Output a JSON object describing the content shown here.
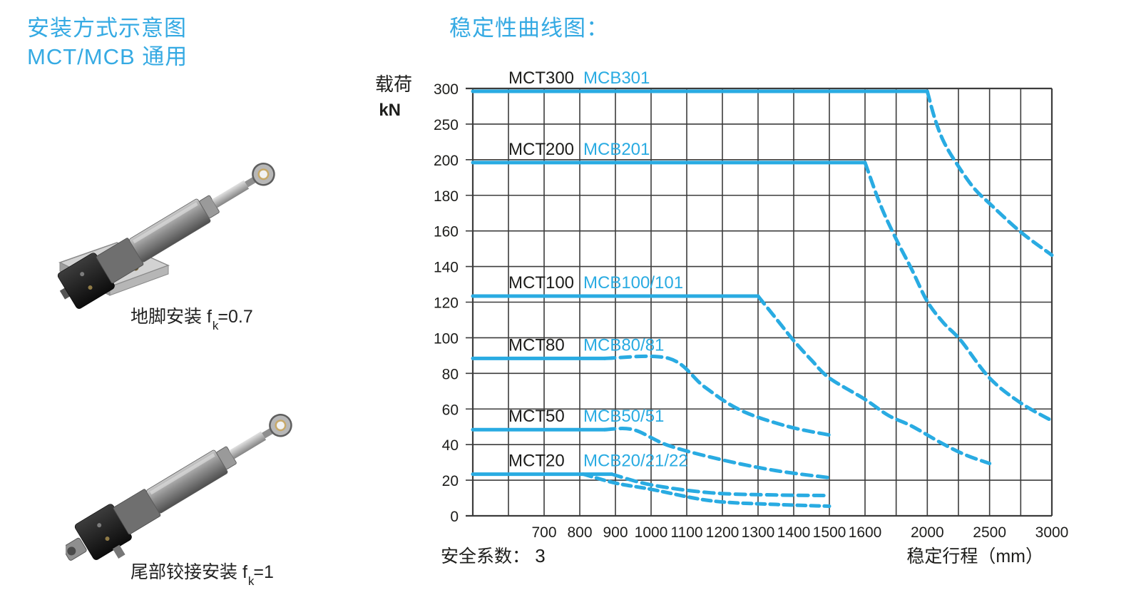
{
  "header": {
    "left_title": "安装方式示意图\nMCT/MCB 通用",
    "chart_title": "稳定性曲线图："
  },
  "mounting_diagrams": {
    "items": [
      {
        "caption": "地脚安装 f",
        "caption_sub": "k",
        "caption_value": "=0.7"
      },
      {
        "caption": "尾部铰接安装 f",
        "caption_sub": "k",
        "caption_value": "=1"
      }
    ]
  },
  "colors": {
    "accent_blue": "#29ABE2",
    "title_blue": "#35AAE3",
    "grid": "#3c3c3c",
    "text_black": "#1d1d1b"
  },
  "chart_data": {
    "type": "line",
    "title": "稳定性曲线图：",
    "y_axis_title_line1": "载荷",
    "y_axis_title_line2": "kN",
    "x_axis_title": "稳定行程（mm）",
    "safety_label": "安全系数：",
    "safety_value": "3",
    "grid": true,
    "y_axis": {
      "ticks": [
        0,
        20,
        40,
        60,
        80,
        100,
        120,
        140,
        160,
        180,
        200,
        250,
        300
      ],
      "note": "non-linear: 20 kN per division up to 200, then 50 kN per division"
    },
    "x_axis": {
      "start_mm": 500,
      "ticks": [
        700,
        800,
        900,
        1000,
        1100,
        1200,
        1300,
        1400,
        1500,
        1600,
        2000,
        2500,
        3000
      ],
      "note": "non-linear: 100 mm per division to 1600, then 200 mm per division to 2000, then 250 mm per division to 3000"
    },
    "series": [
      {
        "mct": "MCT300",
        "mcb": "MCB301",
        "flat_kN": 300,
        "flat_from_mm": 500,
        "flat_to_mm": 2000,
        "curve": [
          [
            2000,
            300
          ],
          [
            2060,
            262
          ],
          [
            2130,
            230
          ],
          [
            2230,
            200
          ],
          [
            2370,
            186
          ],
          [
            2500,
            177
          ],
          [
            2750,
            161
          ],
          [
            3000,
            148
          ]
        ]
      },
      {
        "mct": "MCT200",
        "mcb": "MCB201",
        "flat_kN": 200,
        "flat_from_mm": 500,
        "flat_to_mm": 1600,
        "curve": [
          [
            1600,
            200
          ],
          [
            1700,
            176
          ],
          [
            1800,
            157
          ],
          [
            1900,
            140
          ],
          [
            2000,
            122
          ],
          [
            2130,
            110
          ],
          [
            2270,
            100
          ],
          [
            2500,
            79
          ],
          [
            2750,
            65
          ],
          [
            3000,
            55
          ]
        ]
      },
      {
        "mct": "MCT100",
        "mcb": "MCB100/101",
        "flat_kN": 125,
        "flat_from_mm": 500,
        "flat_to_mm": 1300,
        "curve": [
          [
            1300,
            125
          ],
          [
            1360,
            110
          ],
          [
            1400,
            100
          ],
          [
            1450,
            89
          ],
          [
            1500,
            79
          ],
          [
            1600,
            67
          ],
          [
            1750,
            58
          ],
          [
            1900,
            52
          ],
          [
            2100,
            43
          ],
          [
            2300,
            36
          ],
          [
            2500,
            31
          ]
        ]
      },
      {
        "mct": "MCT80",
        "mcb": "MCB80/81",
        "flat_kN": 90,
        "flat_from_mm": 500,
        "flat_to_mm": 870,
        "curve": [
          [
            870,
            90
          ],
          [
            1050,
            90
          ],
          [
            1150,
            74
          ],
          [
            1250,
            61
          ],
          [
            1380,
            52
          ],
          [
            1500,
            47
          ]
        ]
      },
      {
        "mct": "MCT50",
        "mcb": "MCB50/51",
        "flat_kN": 50,
        "flat_from_mm": 500,
        "flat_to_mm": 870,
        "curve": [
          [
            870,
            50
          ],
          [
            950,
            50
          ],
          [
            1050,
            41
          ],
          [
            1200,
            33
          ],
          [
            1350,
            27
          ],
          [
            1500,
            23
          ]
        ]
      },
      {
        "mct": "MCT20",
        "mcb": "MCB20/21/22",
        "flat_kN": 25,
        "flat_from_mm": 500,
        "flat_to_mm": 890,
        "curve": [
          [
            890,
            25
          ],
          [
            1000,
            19
          ],
          [
            1170,
            14.5
          ],
          [
            1350,
            13.3
          ],
          [
            1500,
            13
          ]
        ],
        "curve2": [
          [
            810,
            25
          ],
          [
            900,
            20
          ],
          [
            1000,
            16.5
          ],
          [
            1170,
            10
          ],
          [
            1350,
            8
          ],
          [
            1500,
            7
          ]
        ]
      }
    ]
  }
}
